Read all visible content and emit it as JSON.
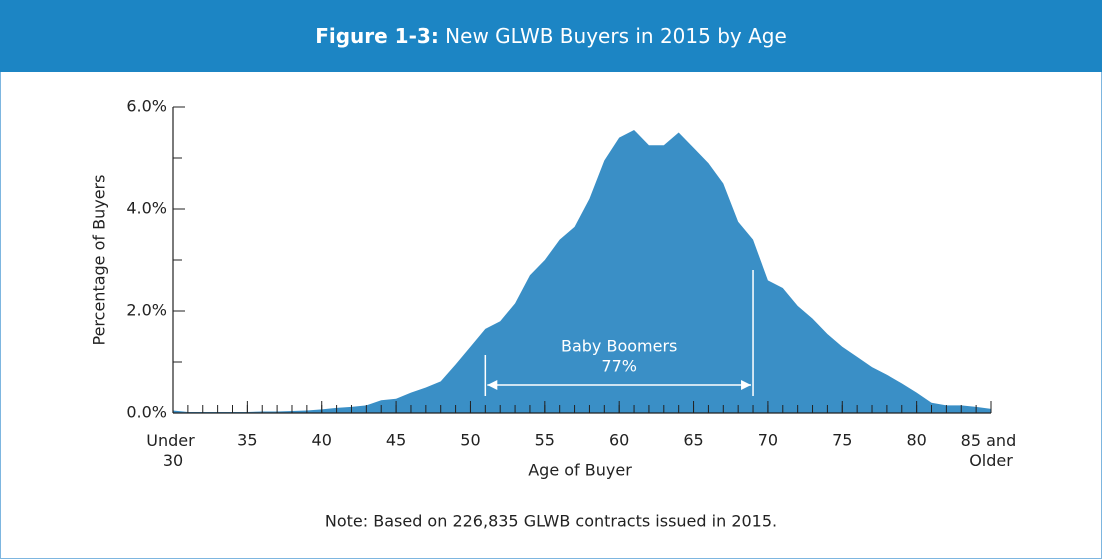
{
  "chart_data": {
    "type": "area",
    "title_prefix": "Figure 1-3:",
    "title": "New GLWB Buyers in 2015 by Age",
    "x_label": "Age of Buyer",
    "y_label": "Percentage of Buyers",
    "note": "Note: Based on 226,835 GLWB contracts issued in 2015.",
    "color": "#3a8fc6",
    "x": [
      30,
      31,
      32,
      33,
      34,
      35,
      36,
      37,
      38,
      39,
      40,
      41,
      42,
      43,
      44,
      45,
      46,
      47,
      48,
      49,
      50,
      51,
      52,
      53,
      54,
      55,
      56,
      57,
      58,
      59,
      60,
      61,
      62,
      63,
      64,
      65,
      66,
      67,
      68,
      69,
      70,
      71,
      72,
      73,
      74,
      75,
      76,
      77,
      78,
      79,
      80,
      81,
      82,
      83,
      84,
      85
    ],
    "values": [
      0.05,
      0.02,
      0.02,
      0.02,
      0.02,
      0.02,
      0.03,
      0.03,
      0.04,
      0.05,
      0.07,
      0.1,
      0.12,
      0.15,
      0.25,
      0.28,
      0.4,
      0.5,
      0.62,
      0.95,
      1.3,
      1.65,
      1.8,
      2.15,
      2.7,
      3.0,
      3.4,
      3.65,
      4.2,
      4.95,
      5.4,
      5.55,
      5.25,
      5.25,
      5.5,
      5.2,
      4.9,
      4.5,
      3.75,
      3.4,
      2.6,
      2.45,
      2.1,
      1.85,
      1.55,
      1.3,
      1.1,
      0.9,
      0.75,
      0.58,
      0.4,
      0.2,
      0.15,
      0.15,
      0.12,
      0.08
    ],
    "xlim": [
      30,
      85
    ],
    "xticks": [
      {
        "value": 30,
        "label": "Under 30"
      },
      35,
      40,
      45,
      50,
      55,
      60,
      65,
      70,
      75,
      80,
      {
        "value": 85,
        "label": "85 and Older"
      }
    ],
    "xminor_step": 1,
    "ylim": [
      0,
      6
    ],
    "yticks": [
      {
        "value": 0,
        "label": "0.0%"
      },
      {
        "value": 2,
        "label": "2.0%"
      },
      {
        "value": 4,
        "label": "4.0%"
      },
      {
        "value": 6,
        "label": "6.0%"
      }
    ],
    "yminor_step": 1,
    "annotation": {
      "text": "Baby Boomers",
      "share": "77%",
      "range": [
        51,
        69
      ]
    }
  }
}
